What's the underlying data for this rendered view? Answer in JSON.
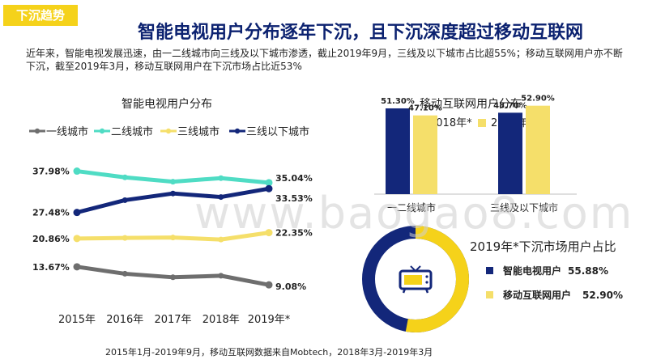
{
  "page": {
    "tag": "下沉趋势",
    "title": "智能电视用户分布逐年下沉，且下沉深度超过移动互联网",
    "subtitle": "近年来，智能电视发展迅速，由一二线城市向三线及以下城市渗透，截止2019年9月，三线及以下城市占比超55%；移动互联网用户亦不断下沉，截至2019年3月，移动互联网用户在下沉市场占比近53%",
    "footer": "2015年1月-2019年9月，移动互联网数据来自Mobtech，2018年3月-2019年3月",
    "watermark": "www.baogao8.com"
  },
  "colors": {
    "tier1": "#6e6e6e",
    "tier2": "#4fdcc4",
    "tier3": "#f5df6a",
    "tier3below": "#13277a",
    "bar2018": "#13277a",
    "bar2019": "#f5df6a",
    "donutTrack": "#13277a",
    "donutArc": "#f5d21a"
  },
  "chart_data": [
    {
      "type": "line",
      "title": "智能电视用户分布",
      "x": [
        "2015年",
        "2016年",
        "2017年",
        "2018年",
        "2019年*"
      ],
      "series": [
        {
          "name": "一线城市",
          "values": [
            13.67,
            11.9,
            11.0,
            11.4,
            9.08
          ],
          "start_label": "13.67%",
          "end_label": "9.08%"
        },
        {
          "name": "二线城市",
          "values": [
            37.98,
            36.4,
            35.3,
            36.2,
            35.04
          ],
          "start_label": "37.98%",
          "end_label": "35.04%"
        },
        {
          "name": "三线城市",
          "values": [
            20.86,
            21.0,
            21.1,
            20.6,
            22.35
          ],
          "start_label": "20.86%",
          "end_label": "22.35%"
        },
        {
          "name": "三线以下城市",
          "values": [
            27.48,
            30.6,
            32.3,
            31.4,
            33.53
          ],
          "start_label": "27.48%",
          "end_label": "33.53%"
        }
      ],
      "ylim": [
        5,
        42
      ],
      "grid": false,
      "legend": "top"
    },
    {
      "type": "bar",
      "title": "移动互联网用户分布",
      "categories": [
        "一二线城市",
        "三线及以下城市"
      ],
      "series": [
        {
          "name": "2018年*",
          "values": [
            51.3,
            48.7
          ],
          "labels": [
            "51.30%",
            "48.70%"
          ]
        },
        {
          "name": "2019年*",
          "values": [
            47.1,
            52.9
          ],
          "labels": [
            "47.10%",
            "52.90%"
          ]
        }
      ],
      "ylim": [
        0,
        60
      ],
      "legend": "top"
    },
    {
      "type": "pie",
      "title": "2019年*下沉市场用户占比",
      "slices": [
        {
          "name": "智能电视用户",
          "value": 55.88,
          "label": "55.88%"
        },
        {
          "name": "移动互联网用户",
          "value": 52.9,
          "label": "52.90%"
        }
      ],
      "icon": "tv-icon",
      "legend": "right"
    }
  ]
}
